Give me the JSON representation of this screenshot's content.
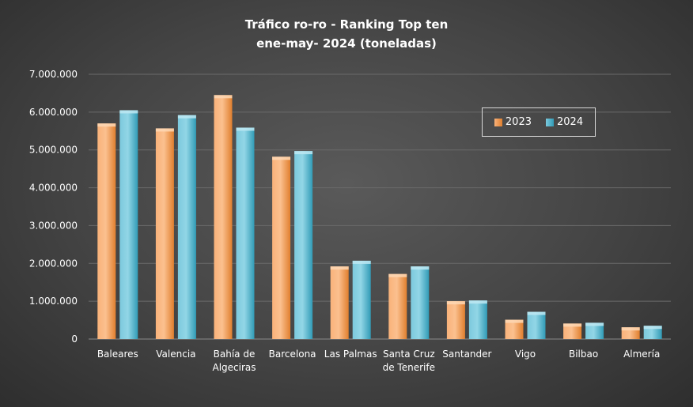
{
  "chart_data": {
    "type": "bar",
    "title_lines": [
      "Tráfico ro-ro - Ranking Top ten",
      "ene-may- 2024  (toneladas)"
    ],
    "categories": [
      [
        "Baleares"
      ],
      [
        "Valencia"
      ],
      [
        "Bahía de",
        "Algeciras"
      ],
      [
        "Barcelona"
      ],
      [
        "Las Palmas"
      ],
      [
        "Santa Cruz",
        "de Tenerife"
      ],
      [
        "Santander"
      ],
      [
        "Vigo"
      ],
      [
        "Bilbao"
      ],
      [
        "Almería"
      ]
    ],
    "series": [
      {
        "name": "2023",
        "color": "#f79646",
        "values": [
          5700000,
          5570000,
          6450000,
          4820000,
          1920000,
          1720000,
          1000000,
          510000,
          410000,
          310000
        ]
      },
      {
        "name": "2024",
        "color": "#4bacc6",
        "values": [
          6050000,
          5920000,
          5590000,
          4970000,
          2070000,
          1920000,
          1020000,
          720000,
          430000,
          350000
        ]
      }
    ],
    "yticks": [
      "0",
      "1.000.000",
      "2.000.000",
      "3.000.000",
      "4.000.000",
      "5.000.000",
      "6.000.000",
      "7.000.000"
    ],
    "ylim": [
      0,
      7000000
    ],
    "ytick_step": 1000000,
    "grid": true,
    "legend_position": "top-right"
  }
}
